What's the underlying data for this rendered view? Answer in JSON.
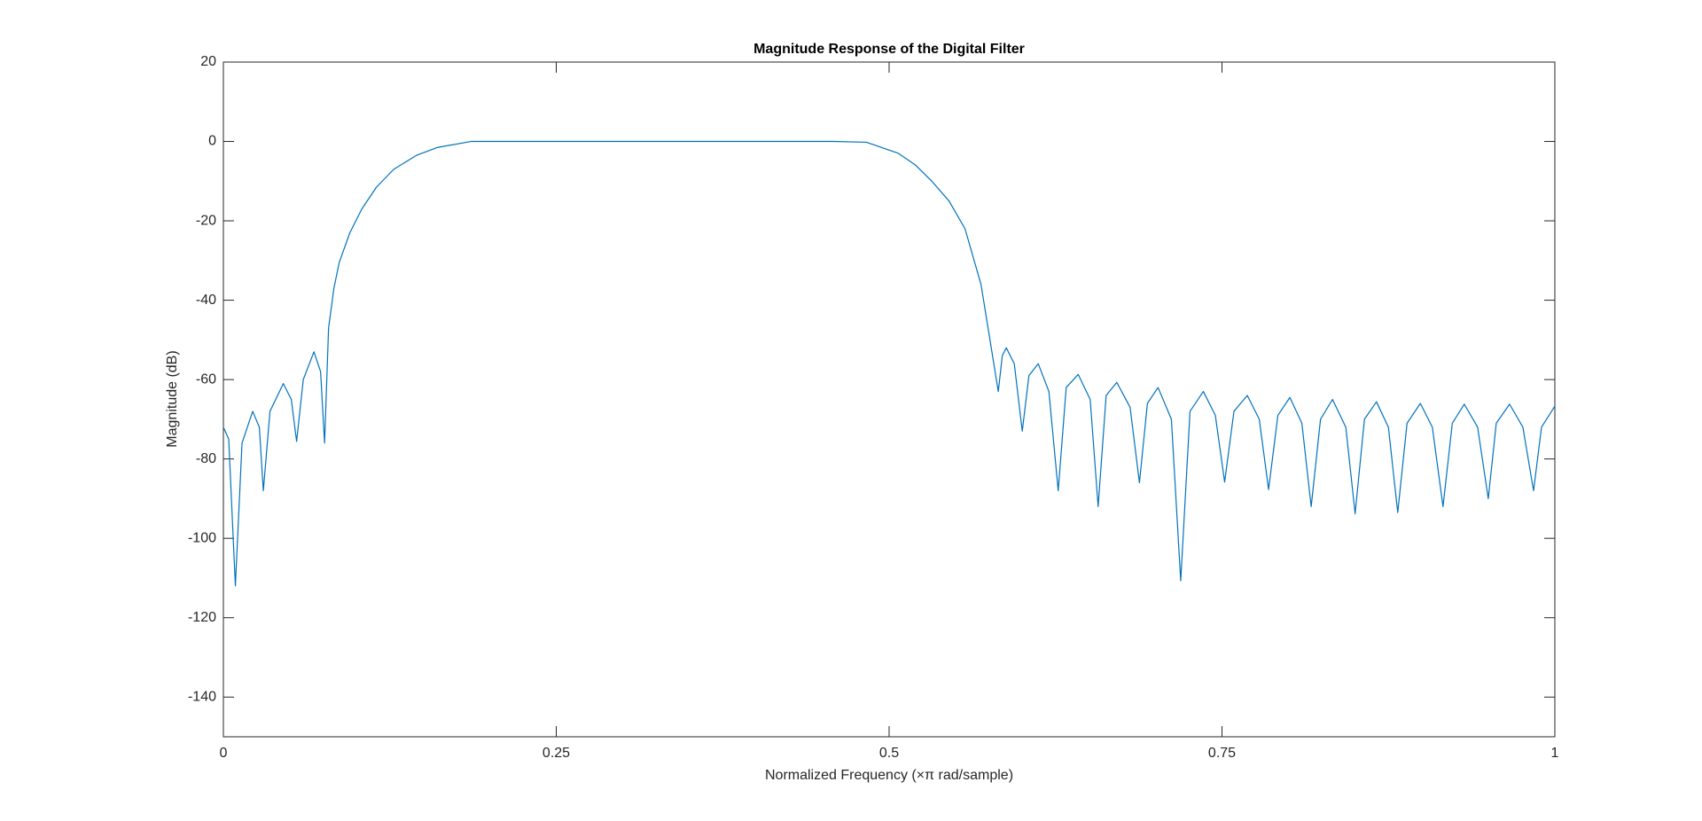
{
  "chart_data": {
    "type": "line",
    "title": "Magnitude Response of the Digital Filter",
    "x_label": "Normalized Frequency (×π rad/sample)",
    "y_label": "Magnitude (dB)",
    "color": "#0072bd",
    "xlim": [
      0,
      1
    ],
    "xticks": [
      0,
      0.25,
      0.5,
      0.75,
      1
    ],
    "ylim": [
      -150,
      20
    ],
    "yticks": [
      -140,
      -120,
      -100,
      -80,
      -60,
      -40,
      -20,
      0,
      20
    ],
    "grid": false,
    "x": [
      0,
      0.004,
      0.009,
      0.014,
      0.022,
      0.027,
      0.03,
      0.035,
      0.045,
      0.051,
      0.055,
      0.06,
      0.068,
      0.073,
      0.076,
      0.079,
      0.083,
      0.087,
      0.095,
      0.104,
      0.115,
      0.128,
      0.145,
      0.161,
      0.186,
      0.25,
      0.3,
      0.35,
      0.4,
      0.458,
      0.483,
      0.507,
      0.52,
      0.532,
      0.545,
      0.557,
      0.569,
      0.577,
      0.582,
      0.585,
      0.588,
      0.594,
      0.6,
      0.605,
      0.612,
      0.62,
      0.627,
      0.633,
      0.642,
      0.651,
      0.657,
      0.663,
      0.671,
      0.681,
      0.688,
      0.694,
      0.702,
      0.712,
      0.719,
      0.726,
      0.736,
      0.745,
      0.752,
      0.759,
      0.769,
      0.778,
      0.785,
      0.792,
      0.801,
      0.81,
      0.817,
      0.824,
      0.833,
      0.843,
      0.85,
      0.857,
      0.866,
      0.875,
      0.882,
      0.889,
      0.899,
      0.908,
      0.916,
      0.923,
      0.932,
      0.942,
      0.95,
      0.956,
      0.966,
      0.976,
      0.984,
      0.99,
      1.0
    ],
    "values": [
      -72,
      -75,
      -112,
      -76,
      -68,
      -72,
      -88,
      -68,
      -61,
      -65,
      -75.6,
      -60,
      -53,
      -58,
      -76,
      -47,
      -37,
      -30.5,
      -23,
      -17,
      -11.5,
      -7,
      -3.5,
      -1.5,
      0,
      0,
      0,
      0,
      0,
      0,
      -0.2,
      -3,
      -6,
      -10,
      -15,
      -22,
      -36,
      -52.6,
      -63,
      -54,
      -52,
      -56,
      -73,
      -59,
      -56,
      -63,
      -88,
      -62,
      -58.7,
      -65,
      -92,
      -64,
      -60.7,
      -67,
      -86,
      -66,
      -62,
      -70,
      -110.7,
      -68,
      -63,
      -69,
      -85.8,
      -68,
      -64,
      -70,
      -87.7,
      -69,
      -64.5,
      -71,
      -92,
      -70,
      -65,
      -72,
      -93.8,
      -70,
      -65.6,
      -72,
      -93.5,
      -71,
      -66,
      -72,
      -92,
      -71,
      -66.2,
      -72,
      -90,
      -71,
      -66.2,
      -72,
      -88,
      -72,
      -66.7
    ]
  }
}
